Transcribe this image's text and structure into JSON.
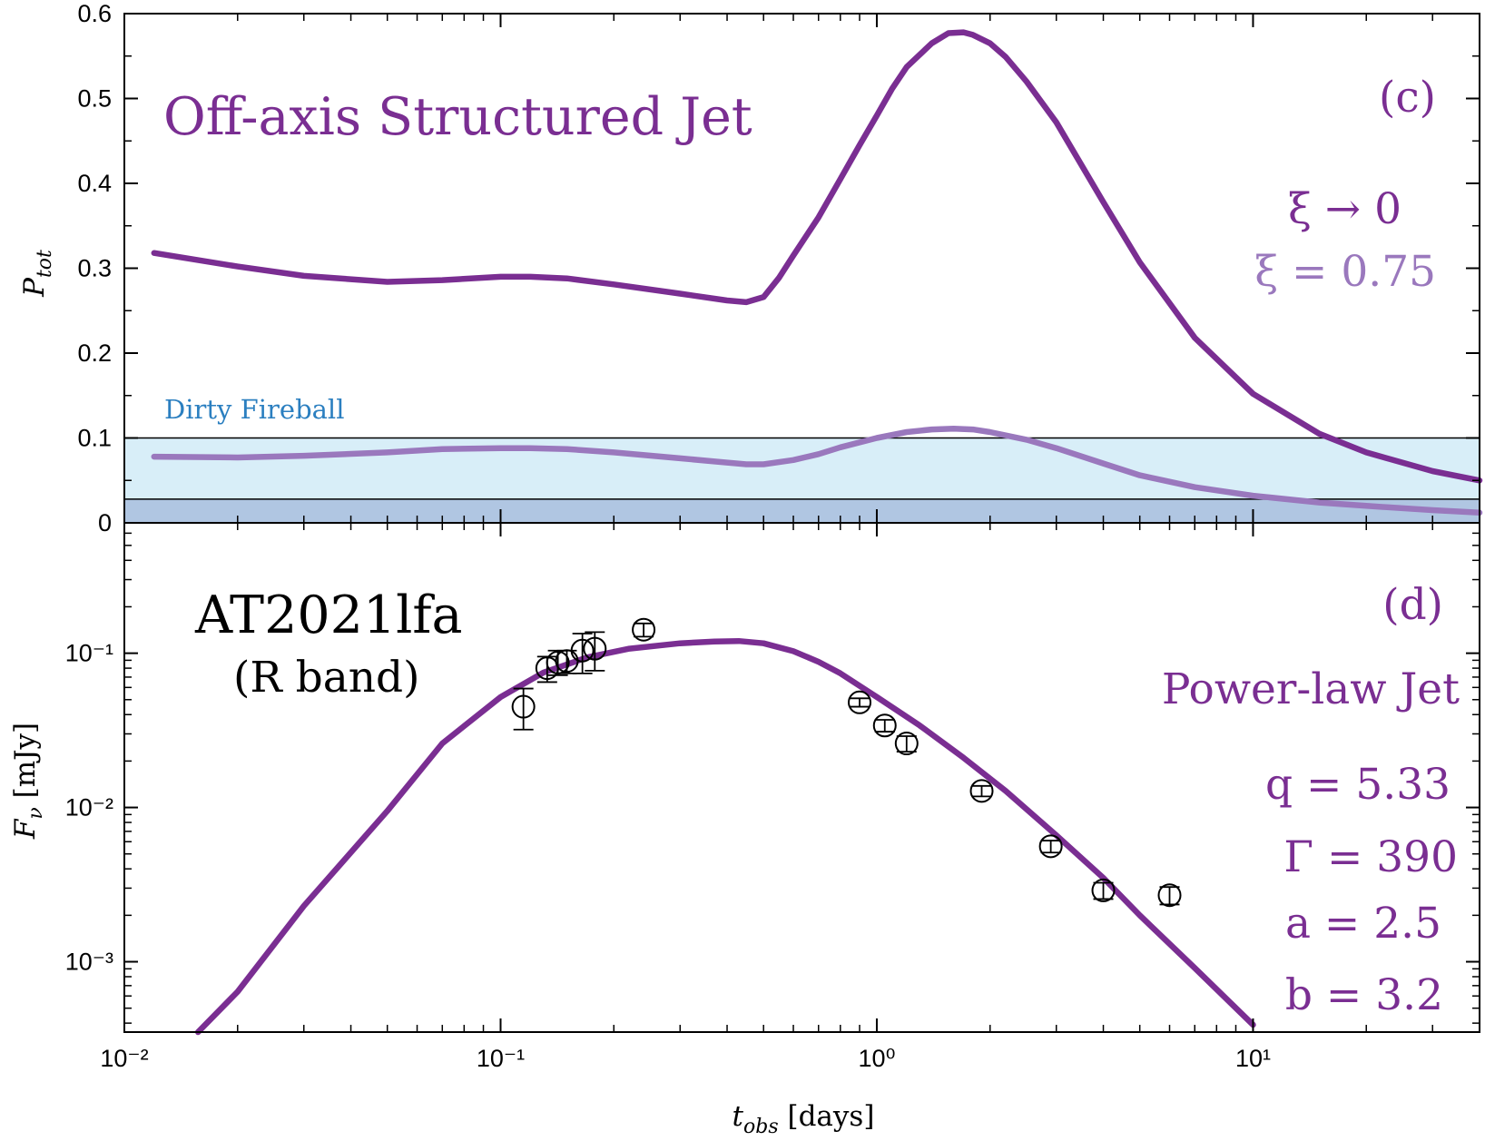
{
  "colors": {
    "main": "#7a2e92",
    "faint": "#9a78bd",
    "band_light": "#d8eef8",
    "band_dark": "#b0c6e2",
    "band_text": "#2b7fc0"
  },
  "chart_data": [
    {
      "type": "line",
      "panel": "(c)",
      "title": "Off-axis Structured Jet",
      "xlabel": "",
      "ylabel_main": "P",
      "ylabel_sub": "tot",
      "xscale": "log",
      "xlim": [
        0.01,
        40
      ],
      "ylim": [
        0,
        0.6
      ],
      "yticks": [
        "0",
        "0.1",
        "0.2",
        "0.3",
        "0.4",
        "0.5",
        "0.6"
      ],
      "ytick_values": [
        0,
        0.1,
        0.2,
        0.3,
        0.4,
        0.5,
        0.6
      ],
      "band": {
        "label": "Dirty Fireball",
        "y_from": 0.028,
        "y_to": 0.1
      },
      "series": [
        {
          "name": "ξ → 0",
          "x": [
            0.012,
            0.02,
            0.03,
            0.05,
            0.07,
            0.1,
            0.12,
            0.15,
            0.2,
            0.3,
            0.4,
            0.45,
            0.5,
            0.55,
            0.6,
            0.7,
            0.8,
            0.9,
            1.0,
            1.1,
            1.2,
            1.4,
            1.55,
            1.7,
            1.8,
            2.0,
            2.2,
            2.5,
            3.0,
            4.0,
            5.0,
            7.0,
            10.0,
            15.0,
            20.0,
            30.0,
            40.0
          ],
          "y": [
            0.318,
            0.302,
            0.291,
            0.284,
            0.286,
            0.29,
            0.29,
            0.288,
            0.281,
            0.27,
            0.262,
            0.26,
            0.266,
            0.289,
            0.315,
            0.36,
            0.405,
            0.445,
            0.48,
            0.512,
            0.537,
            0.565,
            0.577,
            0.578,
            0.575,
            0.565,
            0.549,
            0.52,
            0.472,
            0.378,
            0.307,
            0.218,
            0.152,
            0.105,
            0.083,
            0.061,
            0.05
          ]
        },
        {
          "name": "ξ = 0.75",
          "x": [
            0.012,
            0.02,
            0.03,
            0.05,
            0.07,
            0.1,
            0.12,
            0.15,
            0.2,
            0.3,
            0.4,
            0.45,
            0.5,
            0.6,
            0.7,
            0.8,
            1.0,
            1.2,
            1.4,
            1.6,
            1.8,
            2.0,
            2.5,
            3.0,
            4.0,
            5.0,
            7.0,
            10.0,
            15.0,
            20.0,
            30.0,
            40.0
          ],
          "y": [
            0.078,
            0.077,
            0.079,
            0.083,
            0.087,
            0.088,
            0.088,
            0.087,
            0.083,
            0.076,
            0.071,
            0.069,
            0.069,
            0.074,
            0.081,
            0.089,
            0.1,
            0.107,
            0.11,
            0.111,
            0.11,
            0.107,
            0.098,
            0.088,
            0.07,
            0.056,
            0.042,
            0.032,
            0.024,
            0.02,
            0.015,
            0.012
          ]
        }
      ],
      "legend_labels": [
        "ξ → 0",
        "ξ = 0.75"
      ],
      "legend_placement": "right"
    },
    {
      "type": "line",
      "panel": "(d)",
      "title": "AT2021lfa",
      "subtitle": "(R band)",
      "model_label": "Power-law Jet",
      "params": [
        "q = 5.33",
        "Γ = 390",
        "a = 2.5",
        "b = 3.2"
      ],
      "xlabel": "t",
      "xlabel_sub": "obs",
      "xlabel_unit": " [days]",
      "ylabel": "F",
      "ylabel_sub": "ν",
      "ylabel_unit": " [mJy]",
      "xscale": "log",
      "yscale": "log",
      "xlim": [
        0.01,
        40
      ],
      "ylim": [
        0.00035,
        0.7
      ],
      "xticks": [
        "10⁻²",
        "10⁻¹",
        "10⁰",
        "10¹"
      ],
      "xtick_values": [
        0.01,
        0.1,
        1,
        10
      ],
      "yticks": [
        "10⁻³",
        "10⁻²",
        "10⁻¹"
      ],
      "ytick_values": [
        0.001,
        0.01,
        0.1
      ],
      "model": {
        "x": [
          0.0157,
          0.02,
          0.03,
          0.05,
          0.07,
          0.1,
          0.13,
          0.17,
          0.22,
          0.3,
          0.37,
          0.43,
          0.5,
          0.6,
          0.7,
          0.8,
          1.0,
          1.3,
          1.7,
          2.2,
          3.0,
          4.0,
          5.0,
          7.0,
          10.0
        ],
        "y": [
          0.00035,
          0.00064,
          0.0023,
          0.0095,
          0.026,
          0.052,
          0.075,
          0.094,
          0.107,
          0.116,
          0.119,
          0.12,
          0.116,
          0.103,
          0.088,
          0.074,
          0.052,
          0.034,
          0.021,
          0.0128,
          0.0066,
          0.0035,
          0.002,
          0.00091,
          0.00039
        ]
      },
      "observations": {
        "x": [
          0.115,
          0.133,
          0.142,
          0.15,
          0.165,
          0.178,
          0.24,
          0.9,
          1.05,
          1.2,
          1.9,
          2.9,
          4.0,
          6.0
        ],
        "y": [
          0.045,
          0.08,
          0.087,
          0.089,
          0.104,
          0.107,
          0.142,
          0.048,
          0.034,
          0.026,
          0.0128,
          0.0056,
          0.0029,
          0.0027
        ],
        "y_err_low": [
          0.013,
          0.015,
          0.015,
          0.015,
          0.03,
          0.03,
          0.014,
          0.003,
          0.003,
          0.003,
          0.001,
          0.0005,
          0.00035,
          0.00035
        ],
        "y_err_high": [
          0.014,
          0.015,
          0.017,
          0.015,
          0.03,
          0.03,
          0.014,
          0.003,
          0.003,
          0.003,
          0.001,
          0.0005,
          0.00035,
          0.00035
        ]
      }
    }
  ]
}
